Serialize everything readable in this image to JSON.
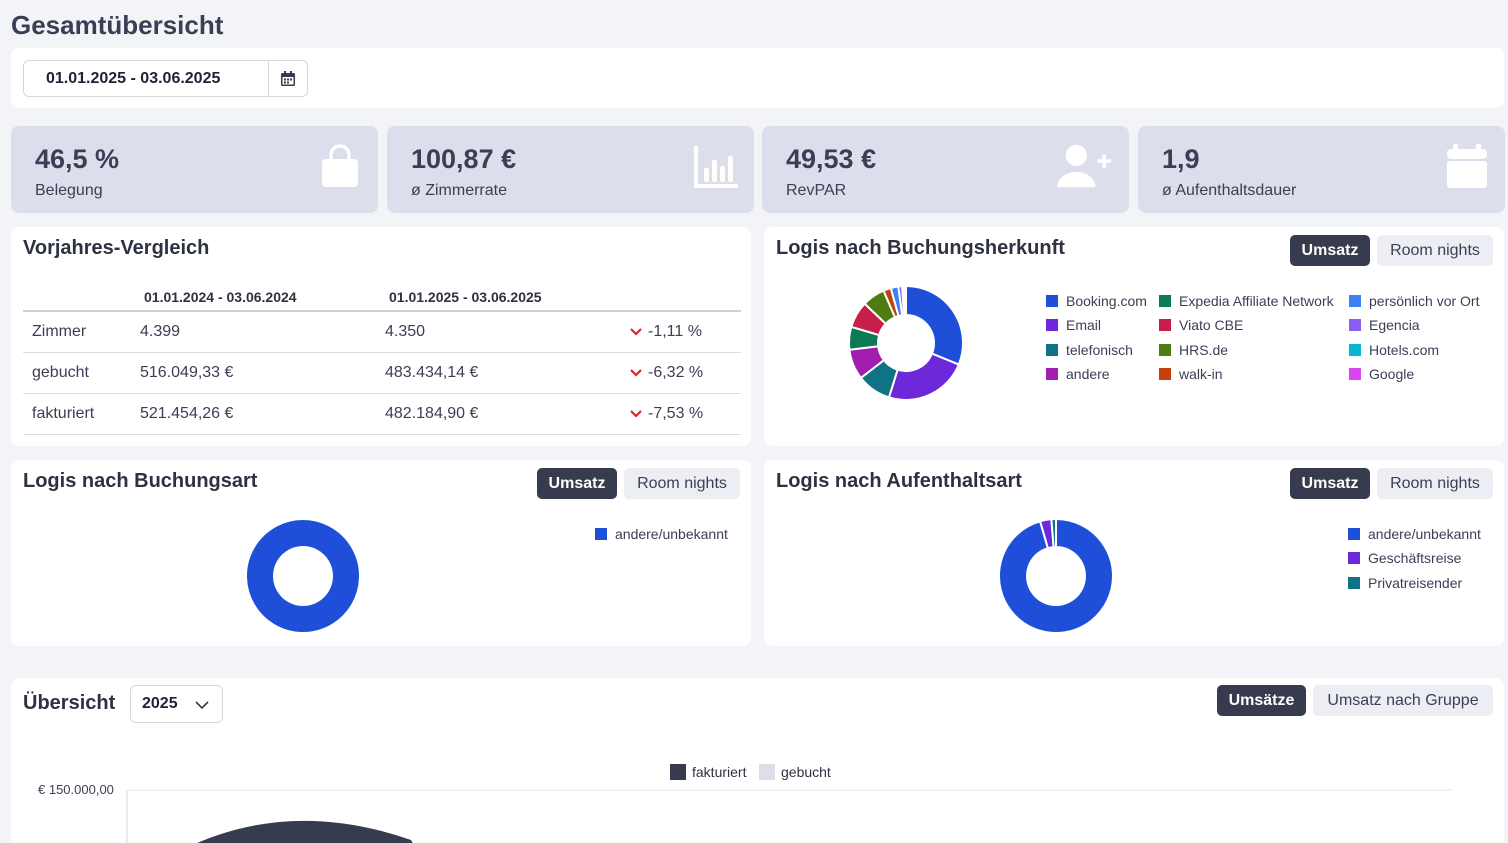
{
  "page": {
    "title": "Gesamtübersicht"
  },
  "date_filter": {
    "value": "01.01.2025 - 03.06.2025",
    "icon": "calendar-icon"
  },
  "kpis": [
    {
      "value": "46,5 %",
      "label": "Belegung",
      "icon": "shopping-bag-icon"
    },
    {
      "value": "100,87 €",
      "label": "ø Zimmerrate",
      "icon": "bar-chart-icon"
    },
    {
      "value": "49,53 €",
      "label": "RevPAR",
      "icon": "user-plus-icon"
    },
    {
      "value": "1,9",
      "label": "ø Aufenthaltsdauer",
      "icon": "calendar-icon"
    }
  ],
  "comparison": {
    "title": "Vorjahres-Vergleich",
    "columns": [
      "",
      "01.01.2024 - 03.06.2024",
      "01.01.2025 - 03.06.2025",
      ""
    ],
    "rows": [
      {
        "label": "Zimmer",
        "prev": "4.399",
        "curr": "4.350",
        "change": "-1,11 %"
      },
      {
        "label": "gebucht",
        "prev": "516.049,33 €",
        "curr": "483.434,14 €",
        "change": "-6,32 %"
      },
      {
        "label": "fakturiert",
        "prev": "521.454,26 €",
        "curr": "482.184,90 €",
        "change": "-7,53 %"
      }
    ]
  },
  "toggles": {
    "umsatz": "Umsatz",
    "room_nights": "Room nights",
    "umsaetze": "Umsätze",
    "umsatz_gruppe": "Umsatz nach Gruppe"
  },
  "herkunft": {
    "title": "Logis nach Buchungsherkunft",
    "legend": [
      {
        "name": "Booking.com",
        "color": "#1f4fd8"
      },
      {
        "name": "Expedia Affiliate Network",
        "color": "#0b7a55"
      },
      {
        "name": "persönlich vor Ort",
        "color": "#3b82f6"
      },
      {
        "name": "Email",
        "color": "#6d28d9"
      },
      {
        "name": "Viato CBE",
        "color": "#c81e4a"
      },
      {
        "name": "Egencia",
        "color": "#8b5cf6"
      },
      {
        "name": "telefonisch",
        "color": "#0f7385"
      },
      {
        "name": "HRS.de",
        "color": "#4d7c0f"
      },
      {
        "name": "Hotels.com",
        "color": "#06b6d4"
      },
      {
        "name": "andere",
        "color": "#a21caf"
      },
      {
        "name": "walk-in",
        "color": "#c2410c"
      },
      {
        "name": "Google",
        "color": "#d946ef"
      }
    ],
    "chart_data": {
      "type": "pie",
      "labels": [
        "Booking.com",
        "Email",
        "telefonisch",
        "andere",
        "Expedia Affiliate Network",
        "Viato CBE",
        "HRS.de",
        "walk-in",
        "persönlich vor Ort",
        "Egencia",
        "Hotels.com",
        "Google"
      ],
      "values": [
        29,
        22,
        9,
        8,
        6,
        7,
        6,
        2,
        2,
        1,
        0.5,
        0.5
      ],
      "colors": [
        "#1f4fd8",
        "#6d28d9",
        "#0f7385",
        "#a21caf",
        "#0b7a55",
        "#c81e4a",
        "#4d7c0f",
        "#c2410c",
        "#3b82f6",
        "#8b5cf6",
        "#06b6d4",
        "#d946ef"
      ]
    }
  },
  "buchungsart": {
    "title": "Logis nach Buchungsart",
    "legend": [
      {
        "name": "andere/unbekannt",
        "color": "#1f4fd8"
      }
    ],
    "chart_data": {
      "type": "pie",
      "labels": [
        "andere/unbekannt"
      ],
      "values": [
        100
      ],
      "colors": [
        "#1f4fd8"
      ]
    }
  },
  "aufenthaltsart": {
    "title": "Logis nach Aufenthaltsart",
    "legend": [
      {
        "name": "andere/unbekannt",
        "color": "#1f4fd8"
      },
      {
        "name": "Geschäftsreise",
        "color": "#6d28d9"
      },
      {
        "name": "Privatreisender",
        "color": "#0f7385"
      }
    ],
    "chart_data": {
      "type": "pie",
      "labels": [
        "andere/unbekannt",
        "Geschäftsreise",
        "Privatreisender"
      ],
      "values": [
        95.5,
        3.2,
        1.3
      ],
      "colors": [
        "#1f4fd8",
        "#6d28d9",
        "#0f7385"
      ]
    }
  },
  "uebersicht": {
    "title": "Übersicht",
    "year": "2025",
    "legend": [
      {
        "name": "fakturiert",
        "color": "#363b4e"
      },
      {
        "name": "gebucht",
        "color": "#dcdeeb"
      }
    ],
    "chart_data": {
      "type": "area",
      "ytick": "€ 150.000,00",
      "series": [
        {
          "name": "fakturiert"
        },
        {
          "name": "gebucht"
        }
      ]
    }
  }
}
